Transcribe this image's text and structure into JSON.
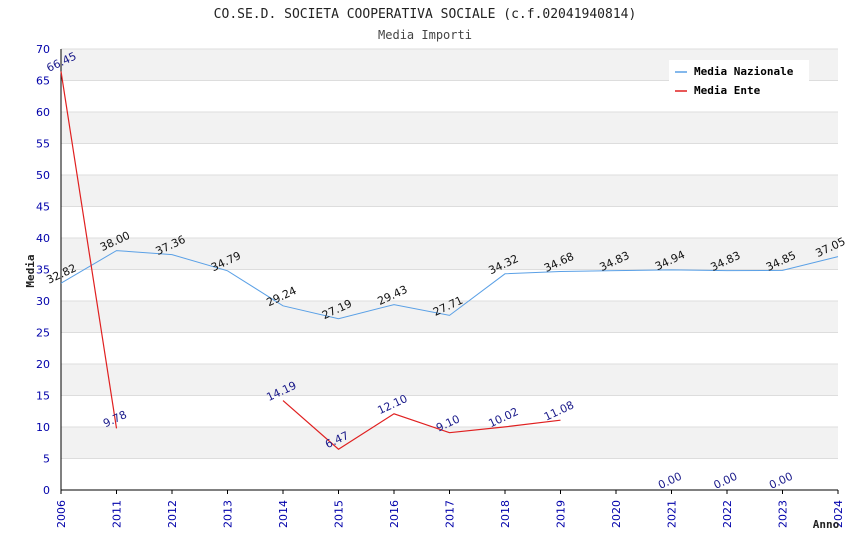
{
  "chart_data": {
    "type": "line",
    "title": "CO.SE.D. SOCIETA COOPERATIVA SOCIALE (c.f.02041940814)",
    "subtitle": "Media Importi",
    "xlabel": "Anno",
    "ylabel": "Media",
    "ylim": [
      0,
      70
    ],
    "yticks": [
      0,
      5,
      10,
      15,
      20,
      25,
      30,
      35,
      40,
      45,
      50,
      55,
      60,
      65,
      70
    ],
    "categories": [
      "2006",
      "2011",
      "2012",
      "2013",
      "2014",
      "2015",
      "2016",
      "2017",
      "2018",
      "2019",
      "2020",
      "2021",
      "2022",
      "2023",
      "2024"
    ],
    "grid": true,
    "legend_position": "top-right",
    "series": [
      {
        "name": "Media Nazionale",
        "color": "#5aa0e6",
        "values": [
          32.82,
          38.0,
          37.36,
          34.79,
          29.24,
          27.19,
          29.43,
          27.71,
          34.32,
          34.68,
          34.83,
          34.94,
          34.83,
          34.85,
          37.05
        ],
        "labels": [
          "32.82",
          "38.00",
          "37.36",
          "34.79",
          "29.24",
          "27.19",
          "29.43",
          "27.71",
          "34.32",
          "34.68",
          "34.83",
          "34.94",
          "34.83",
          "34.85",
          "37.05"
        ]
      },
      {
        "name": "Media Ente",
        "color": "#e02020",
        "values": [
          66.45,
          9.78,
          null,
          null,
          14.19,
          6.47,
          12.1,
          9.1,
          10.02,
          11.08,
          null,
          0.0,
          0.0,
          0.0,
          null
        ],
        "labels": [
          "66.45",
          "9.78",
          null,
          null,
          "14.19",
          "6.47",
          "12.10",
          "9.10",
          "10.02",
          "11.08",
          null,
          "0.00",
          "0.00",
          "0.00",
          null
        ],
        "line_breaks_at_zero": true
      }
    ]
  }
}
